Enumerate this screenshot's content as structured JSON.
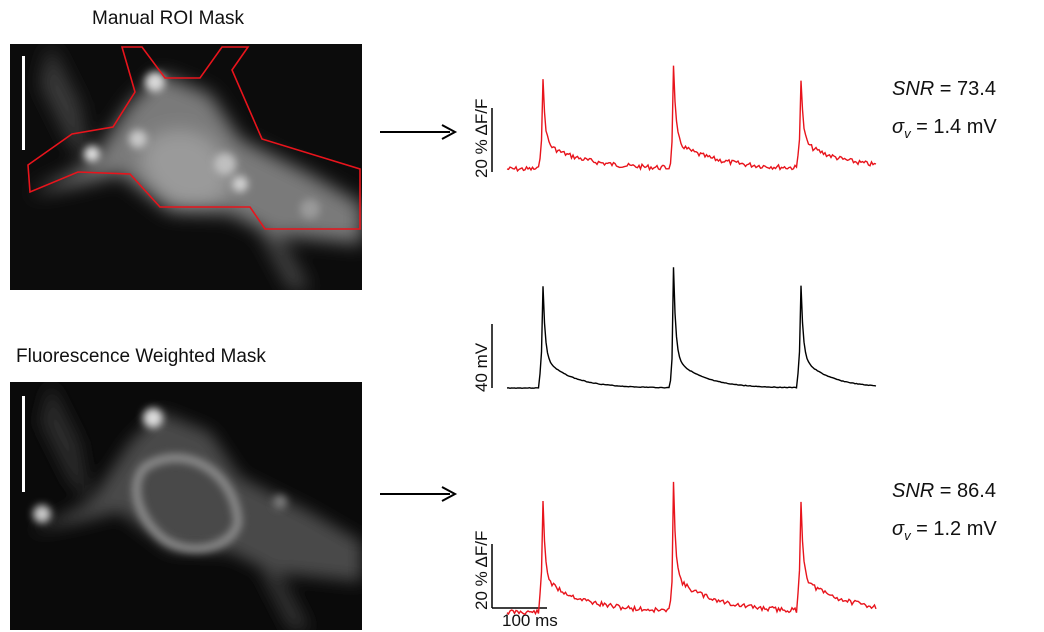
{
  "titles": {
    "top": "Manual ROI Mask",
    "bottom": "Fluorescence Weighted Mask"
  },
  "stats": {
    "top": {
      "snr_label": "SNR",
      "snr_value": "= 73.4",
      "sigma_sub": "v",
      "sigma_value": "= 1.4 mV"
    },
    "bottom": {
      "snr_label": "SNR",
      "snr_value": "= 86.4",
      "sigma_sub": "v",
      "sigma_value": "= 1.2 mV"
    }
  },
  "scale_bars": {
    "dff": "20 % ΔF/F",
    "voltage": "40 mV",
    "time": "100 ms"
  },
  "colors": {
    "optical_trace": "#e8141c",
    "voltage_trace": "#000000",
    "roi_outline": "#e8141c",
    "background": "#ffffff"
  },
  "chart_data": [
    {
      "type": "line",
      "name": "manual-roi-trace",
      "ylabel": "20 % ΔF/F",
      "spike_times_ms": [
        95,
        380,
        665
      ],
      "color": "#e8141c"
    },
    {
      "type": "line",
      "name": "membrane-voltage",
      "ylabel": "40 mV",
      "spike_times_ms": [
        95,
        380,
        665
      ],
      "color": "#000000"
    },
    {
      "type": "line",
      "name": "weighted-mask-trace",
      "ylabel": "20 % ΔF/F",
      "xlabel": "100 ms",
      "spike_times_ms": [
        95,
        380,
        665
      ],
      "color": "#e8141c"
    }
  ]
}
